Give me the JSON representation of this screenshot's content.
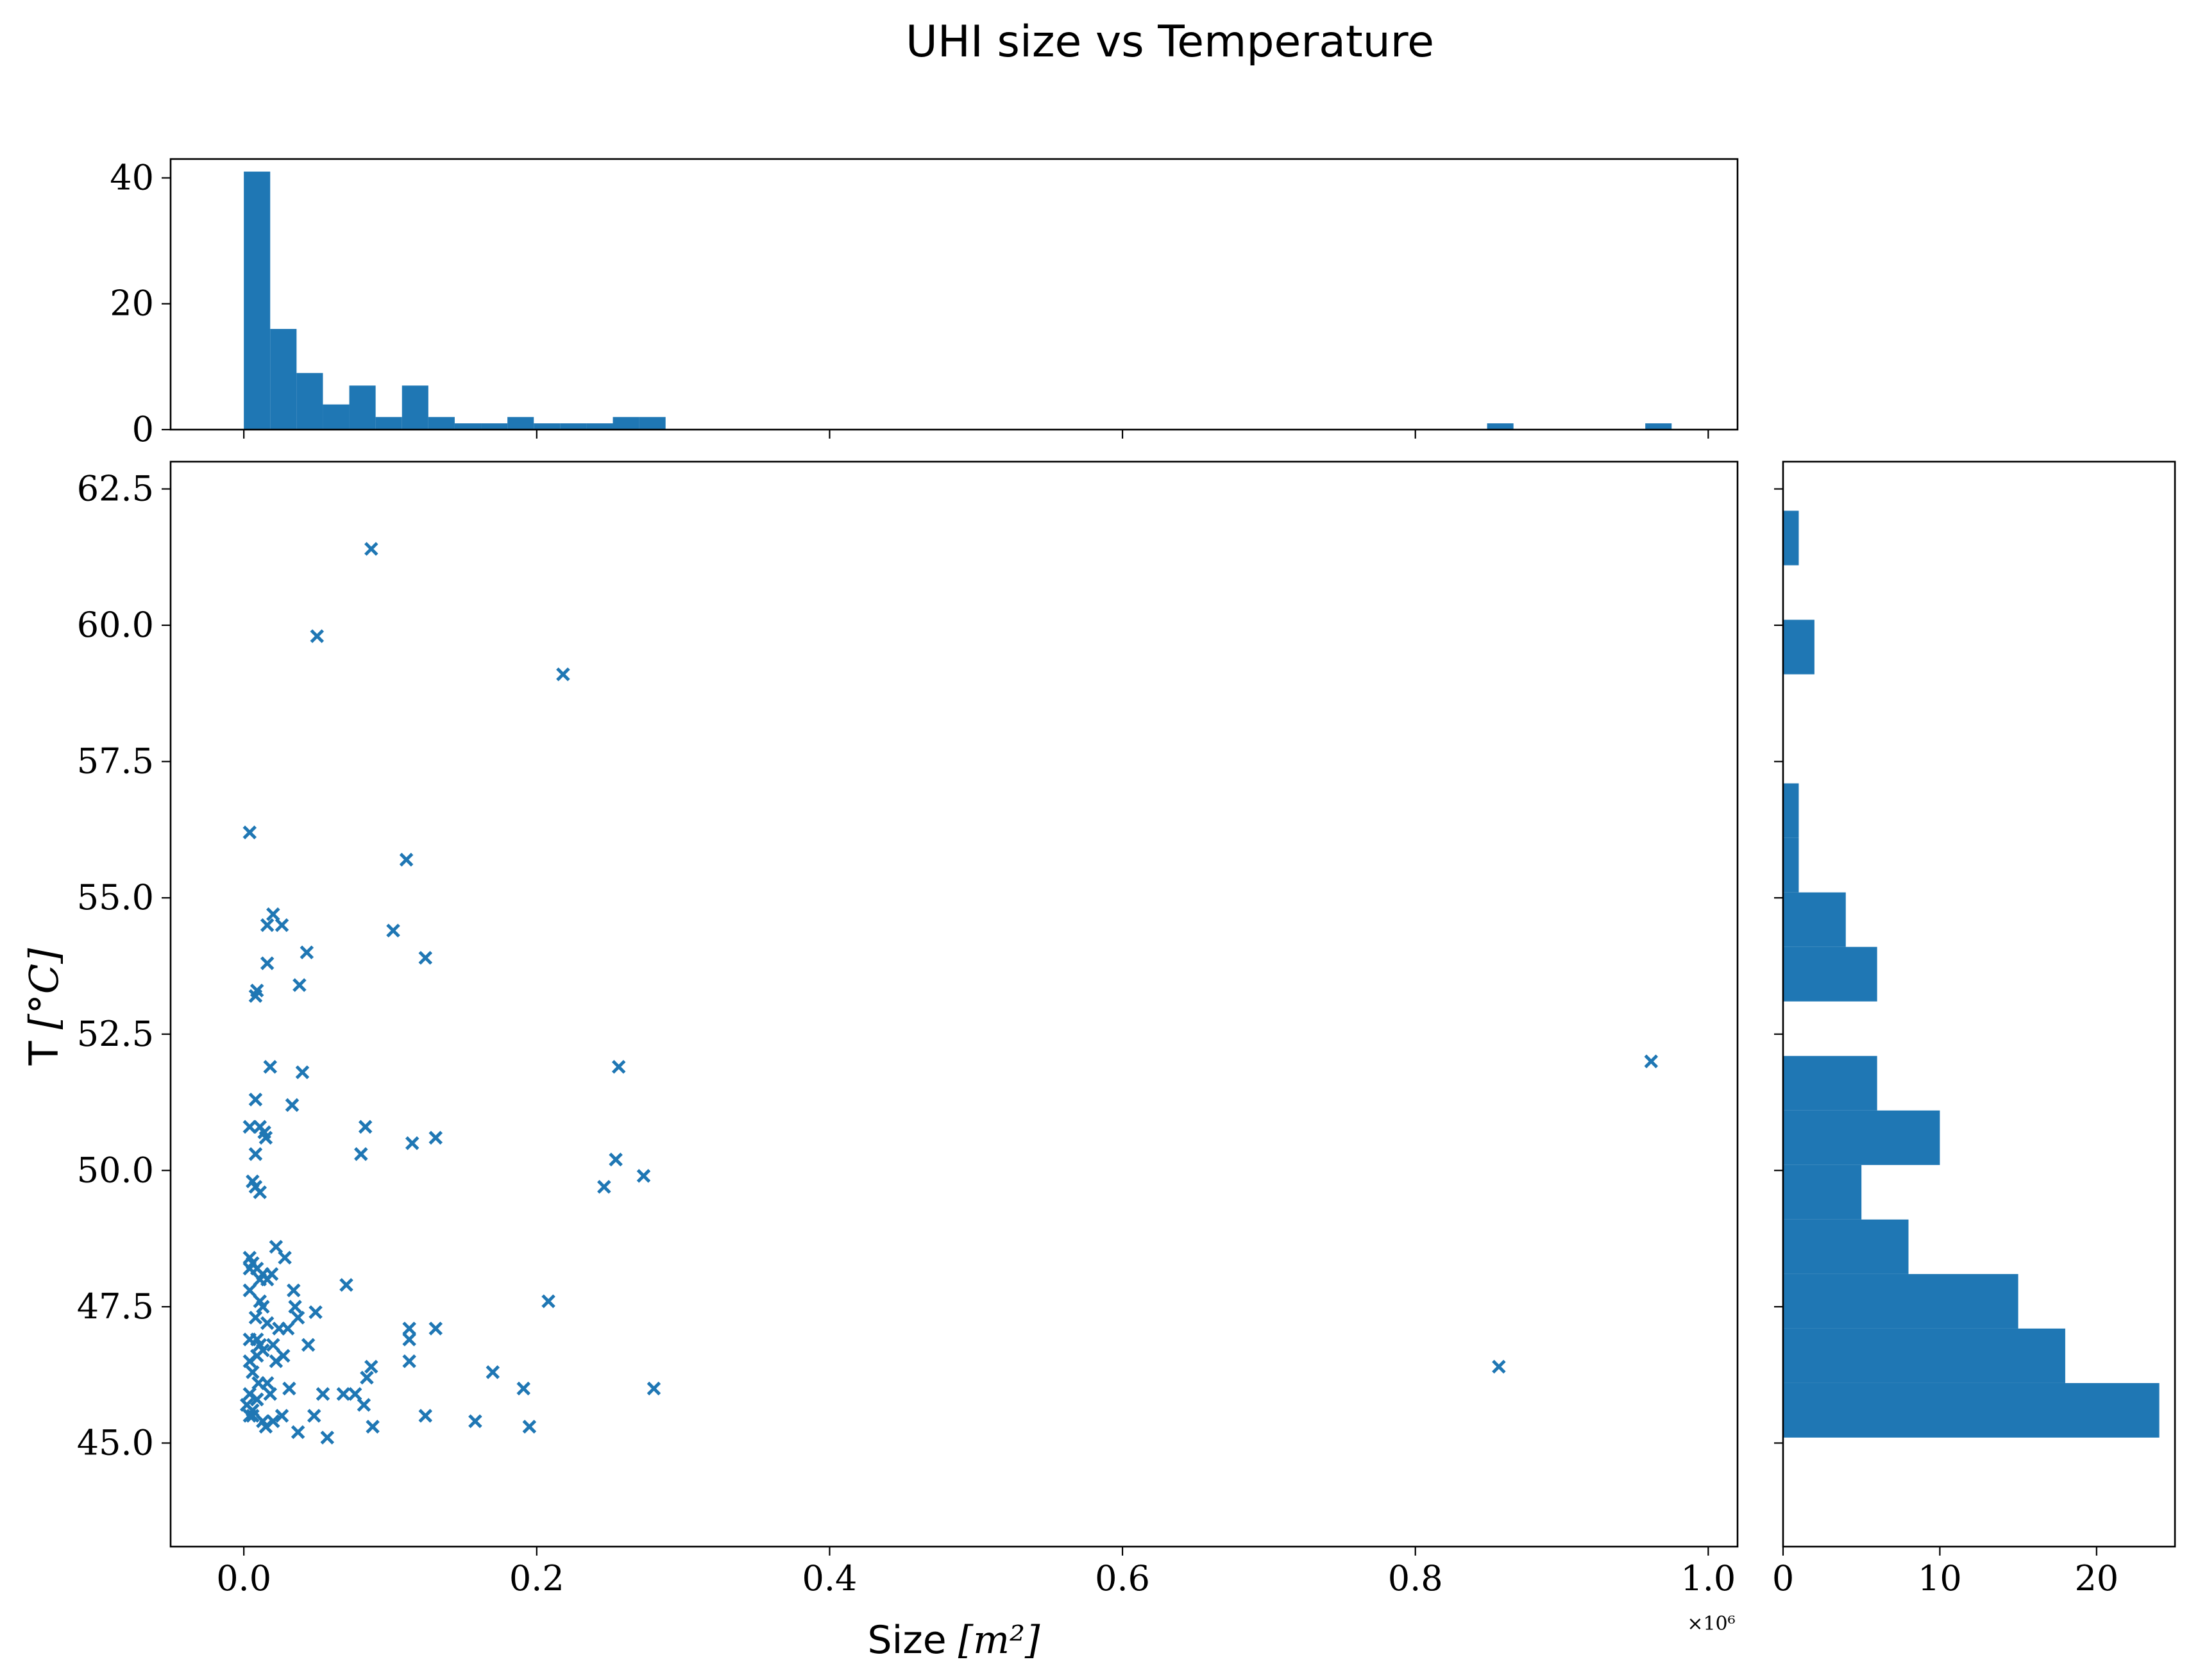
{
  "chart_data": {
    "title": "UHI size vs Temperature",
    "colors": {
      "series": "#1f77b4"
    },
    "scatter": {
      "type": "scatter",
      "marker": "x",
      "xlabel_text": "Size",
      "xlabel_math": "[m²]",
      "ylabel_text": "T",
      "ylabel_math": "[°C]",
      "x_offset_text": "×10⁶",
      "xlim": [
        -0.05,
        1.02
      ],
      "ylim": [
        43.1,
        63.0
      ],
      "x_ticks": [
        0.0,
        0.2,
        0.4,
        0.6,
        0.8,
        1.0
      ],
      "x_tick_labels": [
        "0.0",
        "0.2",
        "0.4",
        "0.6",
        "0.8",
        "1.0"
      ],
      "y_ticks": [
        45.0,
        47.5,
        50.0,
        52.5,
        55.0,
        57.5,
        60.0,
        62.5
      ],
      "y_tick_labels": [
        "45.0",
        "47.5",
        "50.0",
        "52.5",
        "55.0",
        "57.5",
        "60.0",
        "62.5"
      ],
      "points": [
        [
          0.087,
          61.4
        ],
        [
          0.05,
          59.8
        ],
        [
          0.218,
          59.1
        ],
        [
          0.004,
          56.2
        ],
        [
          0.111,
          55.7
        ],
        [
          0.02,
          54.7
        ],
        [
          0.016,
          54.5
        ],
        [
          0.026,
          54.5
        ],
        [
          0.102,
          54.4
        ],
        [
          0.043,
          54.0
        ],
        [
          0.016,
          53.8
        ],
        [
          0.124,
          53.9
        ],
        [
          0.038,
          53.4
        ],
        [
          0.009,
          53.3
        ],
        [
          0.008,
          53.2
        ],
        [
          0.018,
          51.9
        ],
        [
          0.256,
          51.9
        ],
        [
          0.04,
          51.8
        ],
        [
          0.008,
          51.3
        ],
        [
          0.033,
          51.2
        ],
        [
          0.961,
          52.0
        ],
        [
          0.004,
          50.8
        ],
        [
          0.011,
          50.8
        ],
        [
          0.083,
          50.8
        ],
        [
          0.014,
          50.7
        ],
        [
          0.015,
          50.6
        ],
        [
          0.131,
          50.6
        ],
        [
          0.115,
          50.5
        ],
        [
          0.008,
          50.3
        ],
        [
          0.08,
          50.3
        ],
        [
          0.254,
          50.2
        ],
        [
          0.273,
          49.9
        ],
        [
          0.006,
          49.8
        ],
        [
          0.246,
          49.7
        ],
        [
          0.008,
          49.7
        ],
        [
          0.011,
          49.6
        ],
        [
          0.022,
          48.6
        ],
        [
          0.028,
          48.4
        ],
        [
          0.004,
          48.4
        ],
        [
          0.006,
          48.3
        ],
        [
          0.009,
          48.2
        ],
        [
          0.004,
          48.2
        ],
        [
          0.019,
          48.1
        ],
        [
          0.013,
          48.1
        ],
        [
          0.016,
          48.0
        ],
        [
          0.011,
          48.0
        ],
        [
          0.07,
          47.9
        ],
        [
          0.034,
          47.8
        ],
        [
          0.004,
          47.8
        ],
        [
          0.011,
          47.6
        ],
        [
          0.208,
          47.6
        ],
        [
          0.013,
          47.5
        ],
        [
          0.035,
          47.5
        ],
        [
          0.049,
          47.4
        ],
        [
          0.008,
          47.3
        ],
        [
          0.037,
          47.3
        ],
        [
          0.016,
          47.2
        ],
        [
          0.113,
          47.1
        ],
        [
          0.131,
          47.1
        ],
        [
          0.024,
          47.1
        ],
        [
          0.03,
          47.1
        ],
        [
          0.113,
          46.9
        ],
        [
          0.004,
          46.9
        ],
        [
          0.009,
          46.9
        ],
        [
          0.044,
          46.8
        ],
        [
          0.02,
          46.8
        ],
        [
          0.011,
          46.8
        ],
        [
          0.013,
          46.7
        ],
        [
          0.009,
          46.6
        ],
        [
          0.027,
          46.6
        ],
        [
          0.004,
          46.5
        ],
        [
          0.022,
          46.5
        ],
        [
          0.113,
          46.5
        ],
        [
          0.857,
          46.4
        ],
        [
          0.087,
          46.4
        ],
        [
          0.006,
          46.3
        ],
        [
          0.17,
          46.3
        ],
        [
          0.084,
          46.2
        ],
        [
          0.016,
          46.1
        ],
        [
          0.191,
          46.0
        ],
        [
          0.068,
          45.9
        ],
        [
          0.28,
          46.0
        ],
        [
          0.076,
          45.9
        ],
        [
          0.054,
          45.9
        ],
        [
          0.004,
          45.9
        ],
        [
          0.009,
          45.8
        ],
        [
          0.082,
          45.7
        ],
        [
          0.002,
          45.7
        ],
        [
          0.006,
          45.6
        ],
        [
          0.124,
          45.5
        ],
        [
          0.026,
          45.5
        ],
        [
          0.048,
          45.5
        ],
        [
          0.004,
          45.5
        ],
        [
          0.013,
          45.4
        ],
        [
          0.158,
          45.4
        ],
        [
          0.02,
          45.4
        ],
        [
          0.015,
          45.3
        ],
        [
          0.195,
          45.3
        ],
        [
          0.088,
          45.3
        ],
        [
          0.037,
          45.2
        ],
        [
          0.057,
          45.1
        ],
        [
          0.009,
          45.8
        ],
        [
          0.018,
          45.9
        ],
        [
          0.031,
          46.0
        ],
        [
          0.006,
          45.5
        ],
        [
          0.01,
          46.1
        ]
      ]
    },
    "top_histogram": {
      "type": "bar",
      "orientation": "vertical",
      "bin_edges_x": [
        0.0,
        0.018,
        0.036,
        0.054,
        0.072,
        0.09,
        0.108,
        0.126,
        0.144,
        0.162,
        0.18,
        0.198,
        0.216,
        0.234,
        0.252,
        0.27,
        0.288
      ],
      "counts": [
        41,
        16,
        9,
        4,
        7,
        2,
        7,
        2,
        1,
        1,
        2,
        1,
        1,
        1,
        2,
        2
      ],
      "extra_bins": [
        {
          "x0": 0.849,
          "x1": 0.867,
          "count": 1
        },
        {
          "x0": 0.957,
          "x1": 0.975,
          "count": 1
        }
      ],
      "ylim": [
        0,
        43
      ],
      "y_ticks": [
        0,
        20,
        40
      ],
      "y_tick_labels": [
        "0",
        "20",
        "40"
      ]
    },
    "right_histogram": {
      "type": "bar",
      "orientation": "horizontal",
      "bins": [
        {
          "y0": 45.1,
          "y1": 46.1,
          "count": 24
        },
        {
          "y0": 46.1,
          "y1": 47.1,
          "count": 18
        },
        {
          "y0": 47.1,
          "y1": 48.1,
          "count": 15
        },
        {
          "y0": 48.1,
          "y1": 49.1,
          "count": 8
        },
        {
          "y0": 49.1,
          "y1": 50.1,
          "count": 5
        },
        {
          "y0": 50.1,
          "y1": 51.1,
          "count": 10
        },
        {
          "y0": 51.1,
          "y1": 52.1,
          "count": 6
        },
        {
          "y0": 52.1,
          "y1": 53.1,
          "count": 0
        },
        {
          "y0": 53.1,
          "y1": 54.1,
          "count": 6
        },
        {
          "y0": 54.1,
          "y1": 55.1,
          "count": 4
        },
        {
          "y0": 55.1,
          "y1": 56.1,
          "count": 1
        },
        {
          "y0": 56.1,
          "y1": 57.1,
          "count": 1
        },
        {
          "y0": 57.1,
          "y1": 58.1,
          "count": 0
        },
        {
          "y0": 58.1,
          "y1": 59.1,
          "count": 0
        },
        {
          "y0": 59.1,
          "y1": 60.1,
          "count": 2
        },
        {
          "y0": 60.1,
          "y1": 61.1,
          "count": 0
        },
        {
          "y0": 61.1,
          "y1": 62.1,
          "count": 1
        }
      ],
      "xlim": [
        0,
        25
      ],
      "x_ticks": [
        0,
        10,
        20
      ],
      "x_tick_labels": [
        "0",
        "10",
        "20"
      ]
    }
  }
}
